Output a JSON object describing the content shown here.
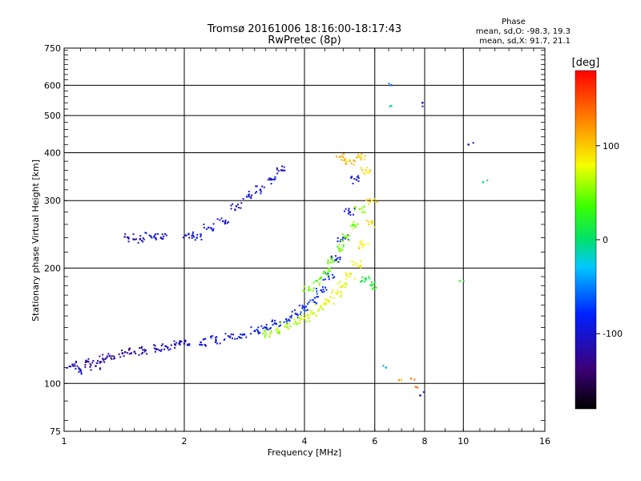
{
  "header": {
    "title_line1": "Tromsø 20161006 18:16:00-18:17:43",
    "title_line2": "RwPretec (8p)"
  },
  "phase_box": {
    "title": "Phase",
    "line_o": "mean, sd,O: -98.3, 19.3",
    "line_x": "mean, sd,X:  91.7, 21.1"
  },
  "chart_data": {
    "type": "scatter",
    "xlabel": "Frequency [MHz]",
    "ylabel": "Stationary phase Virtual Height [km]",
    "x_scale": "log2",
    "y_scale": "log",
    "xlim": [
      1,
      16
    ],
    "ylim": [
      75,
      750
    ],
    "x_ticks": [
      1,
      2,
      4,
      6,
      8,
      10,
      16
    ],
    "y_ticks": [
      75,
      100,
      200,
      300,
      400,
      500,
      600,
      750
    ],
    "colorbar": {
      "label": "[deg]",
      "range": [
        -180,
        180
      ],
      "ticks": [
        100,
        0,
        -100
      ]
    },
    "grid": true,
    "series": [
      {
        "points": [
          [
            1.05,
            112,
            -120
          ],
          [
            1.1,
            108,
            -110
          ],
          [
            1.15,
            114,
            -130
          ],
          [
            1.2,
            111,
            -115
          ],
          [
            1.25,
            116,
            -125
          ],
          [
            1.3,
            118,
            -120
          ],
          [
            1.4,
            120,
            -130
          ],
          [
            1.5,
            121,
            -125
          ],
          [
            1.6,
            122,
            -120
          ],
          [
            1.7,
            123,
            -115
          ],
          [
            1.8,
            125,
            -110
          ],
          [
            1.9,
            126,
            -108
          ],
          [
            2.0,
            127,
            -105
          ],
          [
            2.2,
            128,
            -100
          ],
          [
            2.4,
            130,
            -98
          ],
          [
            2.6,
            132,
            -95
          ],
          [
            2.8,
            134,
            -92
          ],
          [
            3.0,
            137,
            -90
          ],
          [
            3.2,
            140,
            -88
          ],
          [
            3.4,
            143,
            -86
          ],
          [
            3.6,
            147,
            -84
          ],
          [
            3.8,
            152,
            -82
          ],
          [
            4.0,
            158,
            -80
          ],
          [
            4.2,
            165,
            -78
          ],
          [
            4.4,
            175,
            -80
          ],
          [
            4.6,
            190,
            -85
          ],
          [
            4.8,
            210,
            -88
          ],
          [
            5.0,
            240,
            -90
          ],
          [
            5.2,
            280,
            -92
          ],
          [
            5.4,
            340,
            -95
          ]
        ]
      },
      {
        "points": [
          [
            1.45,
            240,
            -110
          ],
          [
            1.55,
            238,
            -105
          ],
          [
            1.65,
            242,
            -100
          ],
          [
            1.75,
            240,
            -108
          ],
          [
            2.05,
            245,
            -100
          ],
          [
            2.15,
            240,
            -95
          ],
          [
            2.3,
            255,
            -95
          ],
          [
            2.5,
            265,
            -100
          ],
          [
            2.7,
            290,
            -105
          ],
          [
            2.9,
            310,
            -100
          ],
          [
            3.1,
            320,
            -95
          ],
          [
            3.3,
            340,
            -100
          ],
          [
            3.5,
            360,
            -110
          ]
        ]
      },
      {
        "points": [
          [
            3.2,
            135,
            55
          ],
          [
            3.4,
            138,
            60
          ],
          [
            3.6,
            141,
            62
          ],
          [
            3.8,
            145,
            65
          ],
          [
            4.0,
            148,
            68
          ],
          [
            4.2,
            152,
            70
          ],
          [
            4.4,
            158,
            72
          ],
          [
            4.6,
            164,
            75
          ],
          [
            4.8,
            172,
            78
          ],
          [
            5.0,
            180,
            80
          ],
          [
            5.2,
            190,
            82
          ],
          [
            5.4,
            205,
            85
          ],
          [
            5.6,
            230,
            88
          ],
          [
            5.8,
            260,
            90
          ],
          [
            5.9,
            300,
            92
          ],
          [
            5.7,
            360,
            95
          ],
          [
            5.5,
            390,
            100
          ],
          [
            5.2,
            380,
            105
          ],
          [
            4.9,
            390,
            110
          ]
        ]
      },
      {
        "points": [
          [
            4.1,
            175,
            45
          ],
          [
            4.3,
            185,
            40
          ],
          [
            4.5,
            195,
            42
          ],
          [
            4.7,
            210,
            45
          ],
          [
            4.9,
            225,
            48
          ],
          [
            5.1,
            240,
            50
          ],
          [
            5.3,
            260,
            52
          ],
          [
            5.5,
            285,
            55
          ],
          [
            5.7,
            188,
            20
          ],
          [
            5.9,
            180,
            25
          ]
        ]
      },
      {
        "points": [
          [
            6.6,
            600,
            -60
          ],
          [
            6.6,
            530,
            -20
          ],
          [
            7.9,
            540,
            -100
          ],
          [
            10.3,
            420,
            -120
          ],
          [
            11.2,
            335,
            -10
          ],
          [
            6.9,
            102,
            120
          ],
          [
            7.4,
            103,
            130
          ],
          [
            7.6,
            98,
            140
          ],
          [
            7.8,
            93,
            -110
          ],
          [
            6.4,
            110,
            -40
          ],
          [
            9.8,
            185,
            30
          ]
        ]
      }
    ]
  }
}
